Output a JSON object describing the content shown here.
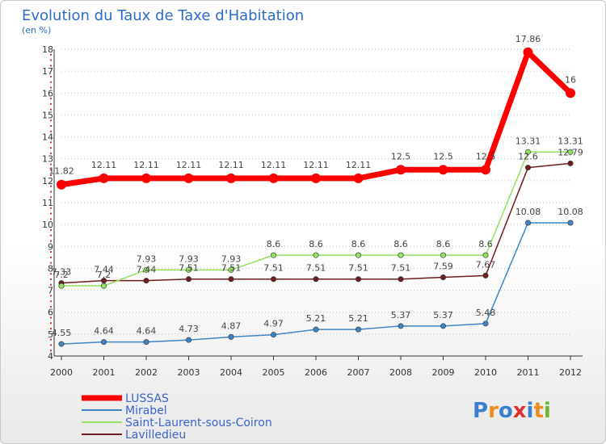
{
  "chart_data": {
    "type": "line",
    "title": "Evolution du Taux de Taxe d'Habitation",
    "unit_label": "(en %)",
    "x": [
      "2000",
      "2001",
      "2002",
      "2003",
      "2004",
      "2005",
      "2006",
      "2007",
      "2008",
      "2009",
      "2010",
      "2011",
      "2012"
    ],
    "ylim": [
      4,
      18
    ],
    "yticks": [
      4,
      5,
      6,
      7,
      8,
      9,
      10,
      11,
      12,
      13,
      14,
      15,
      16,
      17,
      18
    ],
    "grid": "horizontal dotted",
    "legend_position": "bottom-left",
    "series": [
      {
        "name": "LUSSAS",
        "color": "#ff0000",
        "values": [
          11.82,
          12.11,
          12.11,
          12.11,
          12.11,
          12.11,
          12.11,
          12.11,
          12.5,
          12.5,
          12.5,
          17.86,
          16
        ],
        "labels": [
          "11.82",
          "12.11",
          "12.11",
          "12.11",
          "12.11",
          "12.11",
          "12.11",
          "12.11",
          "12.5",
          "12.5",
          "12.5",
          "17.86",
          "16"
        ]
      },
      {
        "name": "Mirabel",
        "color": "#3f85c4",
        "values": [
          4.55,
          4.64,
          4.64,
          4.73,
          4.87,
          4.97,
          5.21,
          5.21,
          5.37,
          5.37,
          5.48,
          10.08,
          10.08
        ],
        "labels": [
          "4.55",
          "4.64",
          "4.64",
          "4.73",
          "4.87",
          "4.97",
          "5.21",
          "5.21",
          "5.37",
          "5.37",
          "5.48",
          "10.08",
          "10.08"
        ]
      },
      {
        "name": "Saint-Laurent-sous-Coiron",
        "color": "#92e260",
        "values": [
          7.2,
          7.2,
          7.93,
          7.93,
          7.93,
          8.6,
          8.6,
          8.6,
          8.6,
          8.6,
          8.6,
          13.31,
          13.31
        ],
        "labels": [
          "7.2",
          "7.2",
          "7.93",
          "7.93",
          "7.93",
          "8.6",
          "8.6",
          "8.6",
          "8.6",
          "8.6",
          "8.6",
          "13.31",
          "13.31"
        ]
      },
      {
        "name": "Lavilledieu",
        "color": "#6e1e1e",
        "values": [
          7.33,
          7.44,
          7.44,
          7.51,
          7.51,
          7.51,
          7.51,
          7.51,
          7.51,
          7.59,
          7.67,
          12.6,
          12.79
        ],
        "labels": [
          "7.33",
          "7.44",
          "7.44",
          "7.51",
          "7.51",
          "7.51",
          "7.51",
          "7.51",
          "7.51",
          "7.59",
          "7.67",
          "12.6",
          "12.79"
        ]
      }
    ]
  },
  "logo": {
    "text": "Proxiti",
    "letters": [
      "P",
      "r",
      "o",
      "x",
      "i",
      "t",
      "i"
    ],
    "colors": [
      "#3a7fd0",
      "#f08a1e",
      "#3a7fd0",
      "#e0312e",
      "#3a7fd0",
      "#f08a1e",
      "#6ab82f"
    ]
  }
}
